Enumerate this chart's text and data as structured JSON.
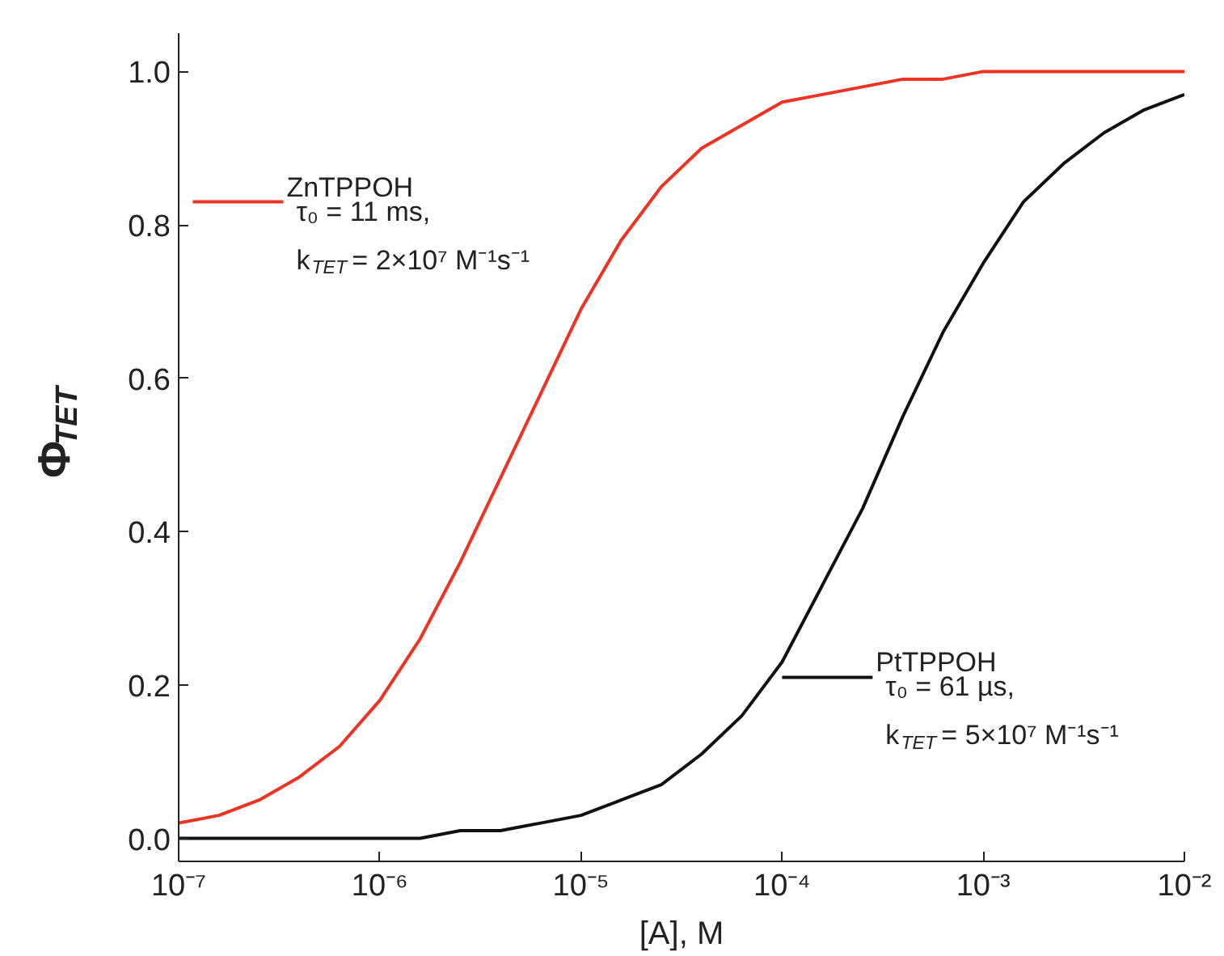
{
  "chart_data": {
    "type": "line",
    "xlabel": "[A], M",
    "ylabel": "Φ$_{TET}$",
    "log": "x",
    "xlim": [
      1e-07,
      0.01
    ],
    "ylim": [
      -0.03,
      1.05
    ],
    "xticks": [
      {
        "value": 1e-07,
        "label": "10⁻⁷"
      },
      {
        "value": 1e-06,
        "label": "10⁻⁶"
      },
      {
        "value": 1e-05,
        "label": "10⁻⁵"
      },
      {
        "value": 0.0001,
        "label": "10⁻⁴"
      },
      {
        "value": 0.001,
        "label": "10⁻³"
      },
      {
        "value": 0.01,
        "label": "10⁻²"
      }
    ],
    "yticks": [
      {
        "value": 0,
        "label": "0.0"
      },
      {
        "value": 0.2,
        "label": "0.2"
      },
      {
        "value": 0.4,
        "label": "0.4"
      },
      {
        "value": 0.6,
        "label": "0.6"
      },
      {
        "value": 0.8,
        "label": "0.8"
      },
      {
        "value": 1.0,
        "label": "1.0"
      }
    ],
    "x": [
      1e-07,
      1.585e-07,
      2.512e-07,
      3.981e-07,
      6.31e-07,
      1e-06,
      1.585e-06,
      2.512e-06,
      3.981e-06,
      6.31e-06,
      1e-05,
      1.585e-05,
      2.512e-05,
      3.981e-05,
      6.31e-05,
      0.0001,
      0.0001585,
      0.0002512,
      0.0003981,
      0.000631,
      0.001,
      0.001585,
      0.002512,
      0.003981,
      0.00631,
      0.01
    ],
    "series": [
      {
        "name": "ZnTPPOH",
        "color": "#ee3322",
        "values": [
          0.02,
          0.03,
          0.05,
          0.08,
          0.12,
          0.18,
          0.26,
          0.36,
          0.47,
          0.58,
          0.69,
          0.78,
          0.85,
          0.9,
          0.93,
          0.96,
          0.97,
          0.98,
          0.99,
          0.99,
          1.0,
          1.0,
          1.0,
          1.0,
          1.0,
          1.0
        ]
      },
      {
        "name": "PtTPPOH",
        "color": "#111111",
        "values": [
          0.0,
          0.0,
          0.0,
          0.0,
          0.0,
          0.0,
          0.0,
          0.01,
          0.01,
          0.02,
          0.03,
          0.05,
          0.07,
          0.11,
          0.16,
          0.23,
          0.33,
          0.43,
          0.55,
          0.66,
          0.75,
          0.83,
          0.88,
          0.92,
          0.95,
          0.97
        ]
      }
    ],
    "annotations": [
      "τ₀ = 11 ms,",
      "k$_{TET}$ = 2×10⁷ M⁻¹s⁻¹",
      "τ₀ = 61 µs,",
      "k$_{TET}$ = 5×10⁷ M⁻¹s⁻¹"
    ],
    "legend": "top left",
    "line_style": "solid",
    "marker": "none",
    "grid": false
  }
}
